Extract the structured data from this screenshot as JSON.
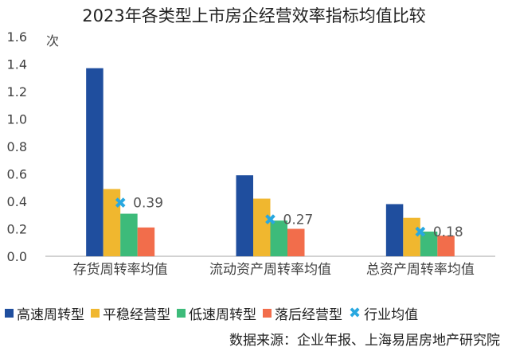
{
  "chart_data": {
    "type": "bar",
    "title": "2023年各类型上市房企经营效率指标均值比较",
    "unit_label": "次",
    "categories": [
      "存货周转率均值",
      "流动资产周转率均值",
      "总资产周转率均值"
    ],
    "series": [
      {
        "name": "高速周转型",
        "values": [
          1.37,
          0.59,
          0.38
        ],
        "color": "#1f4e9e"
      },
      {
        "name": "平稳经营型",
        "values": [
          0.49,
          0.42,
          0.28
        ],
        "color": "#f0b72f"
      },
      {
        "name": "低速周转型",
        "values": [
          0.31,
          0.26,
          0.18
        ],
        "color": "#3dbb7a"
      },
      {
        "name": "落后经营型",
        "values": [
          0.21,
          0.2,
          0.15
        ],
        "color": "#f26d4b"
      }
    ],
    "marker_series": {
      "name": "行业均值",
      "values": [
        0.39,
        0.27,
        0.18
      ],
      "labels": [
        "0.39",
        "0.27",
        "0.18"
      ],
      "color": "#29a8e0"
    },
    "ylim": [
      0,
      1.6
    ],
    "yticks": [
      "0.0",
      "0.2",
      "0.4",
      "0.6",
      "0.8",
      "1.0",
      "1.2",
      "1.4",
      "1.6"
    ],
    "grid": false,
    "legend_position": "bottom"
  },
  "source_text": "数据来源：企业年报、上海易居房地产研究院"
}
